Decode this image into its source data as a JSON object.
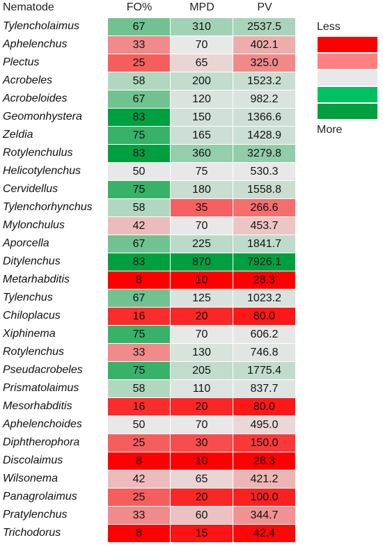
{
  "chart_data": {
    "type": "heatmap",
    "columns": [
      "Nematode",
      "FO%",
      "MPD",
      "PV"
    ],
    "rows": [
      {
        "name": "Tylencholaimus",
        "fo": "67",
        "mpd": "310",
        "pv": "2537.5"
      },
      {
        "name": "Aphelenchus",
        "fo": "33",
        "mpd": "70",
        "pv": "402.1"
      },
      {
        "name": "Plectus",
        "fo": "25",
        "mpd": "65",
        "pv": "325.0"
      },
      {
        "name": "Acrobeles",
        "fo": "58",
        "mpd": "200",
        "pv": "1523.2"
      },
      {
        "name": "Acrobeloides",
        "fo": "67",
        "mpd": "120",
        "pv": "982.2"
      },
      {
        "name": "Geomonhystera",
        "fo": "83",
        "mpd": "150",
        "pv": "1366.6"
      },
      {
        "name": "Zeldia",
        "fo": "75",
        "mpd": "165",
        "pv": "1428.9"
      },
      {
        "name": "Rotylenchulus",
        "fo": "83",
        "mpd": "360",
        "pv": "3279.8"
      },
      {
        "name": "Helicotylenchus",
        "fo": "50",
        "mpd": "75",
        "pv": "530.3"
      },
      {
        "name": "Cervidellus",
        "fo": "75",
        "mpd": "180",
        "pv": "1558.8"
      },
      {
        "name": "Tylenchorhynchus",
        "fo": "58",
        "mpd": "35",
        "pv": "266.6"
      },
      {
        "name": "Mylonchulus",
        "fo": "42",
        "mpd": "70",
        "pv": "453.7"
      },
      {
        "name": "Aporcella",
        "fo": "67",
        "mpd": "225",
        "pv": "1841.7"
      },
      {
        "name": "Ditylenchus",
        "fo": "83",
        "mpd": "870",
        "pv": "7926.1"
      },
      {
        "name": "Metarhabditis",
        "fo": "8",
        "mpd": "10",
        "pv": "28.3"
      },
      {
        "name": "Tylenchus",
        "fo": "67",
        "mpd": "125",
        "pv": "1023.2"
      },
      {
        "name": "Chiloplacus",
        "fo": "16",
        "mpd": "20",
        "pv": "80.0"
      },
      {
        "name": "Xiphinema",
        "fo": "75",
        "mpd": "70",
        "pv": "606.2"
      },
      {
        "name": "Rotylenchus",
        "fo": "33",
        "mpd": "130",
        "pv": "746.8"
      },
      {
        "name": "Pseudacrobeles",
        "fo": "75",
        "mpd": "205",
        "pv": "1775.4"
      },
      {
        "name": "Prismatolaimus",
        "fo": "58",
        "mpd": "110",
        "pv": "837.7"
      },
      {
        "name": "Mesorhabditis",
        "fo": "16",
        "mpd": "20",
        "pv": "80.0"
      },
      {
        "name": "Aphelenchoides",
        "fo": "50",
        "mpd": "70",
        "pv": "495.0"
      },
      {
        "name": "Diphtherophora",
        "fo": "25",
        "mpd": "30",
        "pv": "150.0"
      },
      {
        "name": "Discolaimus",
        "fo": "8",
        "mpd": "10",
        "pv": "28.3"
      },
      {
        "name": "Wilsonema",
        "fo": "42",
        "mpd": "65",
        "pv": "421.2"
      },
      {
        "name": "Panagrolaimus",
        "fo": "25",
        "mpd": "20",
        "pv": "100.0"
      },
      {
        "name": "Pratylenchus",
        "fo": "33",
        "mpd": "60",
        "pv": "344.7"
      },
      {
        "name": "Trichodorus",
        "fo": "8",
        "mpd": "15",
        "pv": "42.4"
      }
    ],
    "legend": {
      "top_label": "Less",
      "bottom_label": "More",
      "colors": [
        "#ff0000",
        "#ff8080",
        "#e8e8e8",
        "#00c060",
        "#00a040"
      ]
    }
  }
}
